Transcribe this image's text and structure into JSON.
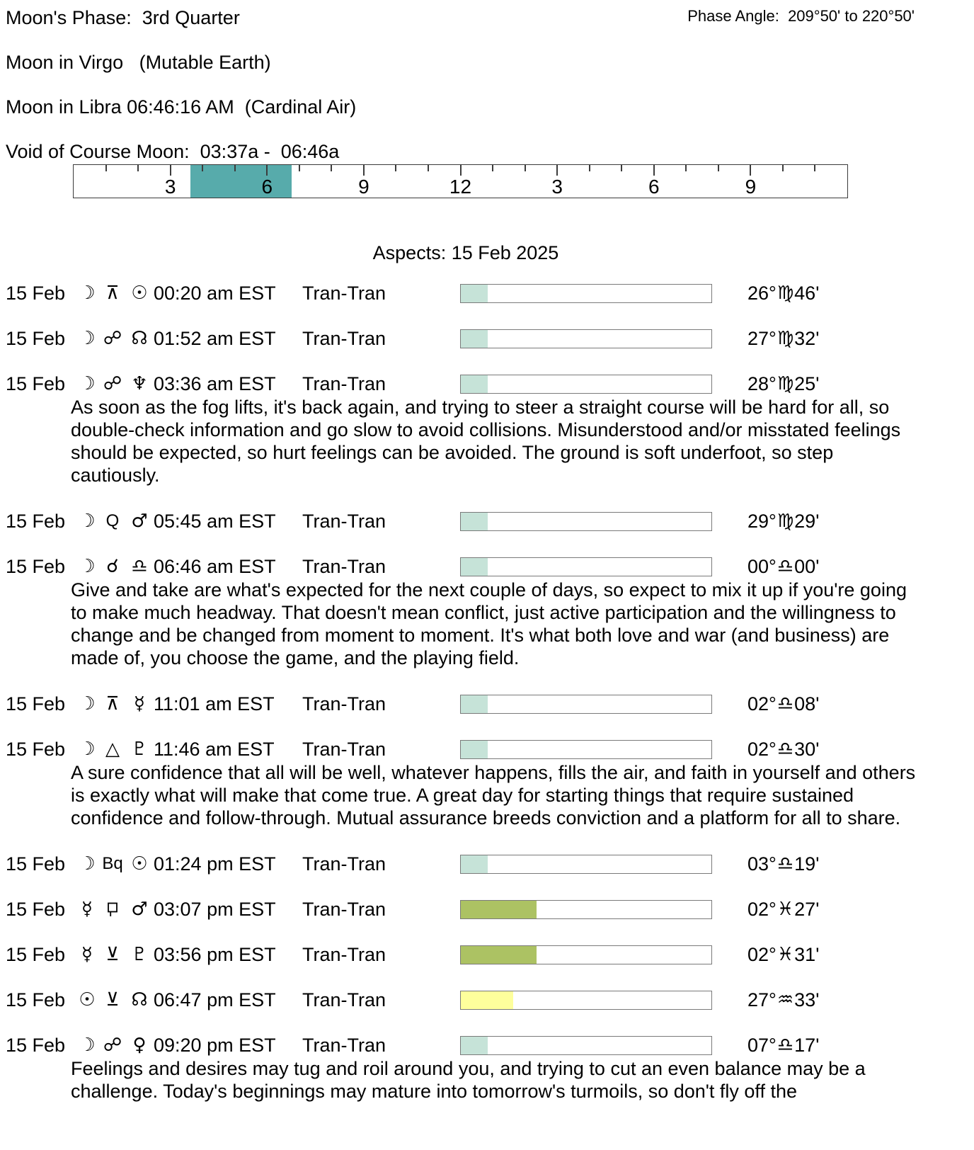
{
  "header": {
    "moon_phase": "Moon's Phase:  3rd Quarter",
    "phase_angle": "Phase Angle:  209°50' to 220°50'",
    "moon_in_sign": "Moon in Virgo   (Mutable Earth)",
    "moon_ingress": "Moon in Libra 06:46:16 AM  (Cardinal Air)",
    "voc": "Void of Course Moon:  03:37a -  06:46a"
  },
  "ruler": {
    "hours_span": 24,
    "labels": [
      {
        "text": "3",
        "hour": 3
      },
      {
        "text": "6",
        "hour": 6
      },
      {
        "text": "9",
        "hour": 9
      },
      {
        "text": "12",
        "hour": 12
      },
      {
        "text": "3",
        "hour": 15
      },
      {
        "text": "6",
        "hour": 18
      },
      {
        "text": "9",
        "hour": 21
      }
    ],
    "highlight": {
      "start_hour": 3.617,
      "end_hour": 6.767,
      "color": "#57abab"
    }
  },
  "aspects": {
    "title": "Aspects: 15 Feb 2025",
    "rows": [
      {
        "date": "15 Feb",
        "p1": "moon",
        "aspect": "quincunx",
        "p2": "sun",
        "time": "00:20 am EST",
        "type": "Tran-Tran",
        "orb_fill_pct": 10.7,
        "orb_fill_color": "#c6e3d8",
        "pos": {
          "deg": "26",
          "sign": "virgo",
          "min": "46"
        },
        "note": ""
      },
      {
        "date": "15 Feb",
        "p1": "moon",
        "aspect": "opposition",
        "p2": "north-node",
        "time": "01:52 am EST",
        "type": "Tran-Tran",
        "orb_fill_pct": 10.7,
        "orb_fill_color": "#c6e3d8",
        "pos": {
          "deg": "27",
          "sign": "virgo",
          "min": "32"
        },
        "note": ""
      },
      {
        "date": "15 Feb",
        "p1": "moon",
        "aspect": "opposition",
        "p2": "neptune",
        "time": "03:36 am EST",
        "type": "Tran-Tran",
        "orb_fill_pct": 10.7,
        "orb_fill_color": "#c6e3d8",
        "pos": {
          "deg": "28",
          "sign": "virgo",
          "min": "25"
        },
        "note": "As soon as the fog lifts, it's back again, and trying to steer a straight course will be hard for all, so double-check information and go slow to avoid collisions. Misunderstood and/or misstated feelings should be expected, so hurt feelings can be avoided. The ground is soft underfoot, so step cautiously."
      },
      {
        "date": "15 Feb",
        "p1": "moon",
        "aspect": "quintile",
        "p2": "mars",
        "time": "05:45 am EST",
        "type": "Tran-Tran",
        "orb_fill_pct": 10.7,
        "orb_fill_color": "#c6e3d8",
        "pos": {
          "deg": "29",
          "sign": "virgo",
          "min": "29"
        },
        "note": ""
      },
      {
        "date": "15 Feb",
        "p1": "moon",
        "aspect": "conjunction",
        "p2": "libra-sign",
        "time": "06:46 am EST",
        "type": "Tran-Tran",
        "orb_fill_pct": 10.7,
        "orb_fill_color": "#c6e3d8",
        "pos": {
          "deg": "00",
          "sign": "libra",
          "min": "00"
        },
        "note": "Give and take are what's expected for the next couple of days, so expect to mix it up if you're going to make much headway. That doesn't mean conflict, just active participation and the willingness to change and be changed from moment to moment. It's what both love and war (and business) are made of, you choose the game, and the playing field."
      },
      {
        "date": "15 Feb",
        "p1": "moon",
        "aspect": "quincunx",
        "p2": "mercury",
        "time": "11:01 am EST",
        "type": "Tran-Tran",
        "orb_fill_pct": 10.7,
        "orb_fill_color": "#c6e3d8",
        "pos": {
          "deg": "02",
          "sign": "libra",
          "min": "08"
        },
        "note": ""
      },
      {
        "date": "15 Feb",
        "p1": "moon",
        "aspect": "trine",
        "p2": "pluto",
        "time": "11:46 am EST",
        "type": "Tran-Tran",
        "orb_fill_pct": 10.7,
        "orb_fill_color": "#c6e3d8",
        "pos": {
          "deg": "02",
          "sign": "libra",
          "min": "30"
        },
        "note": "A sure confidence that all will be well, whatever happens, fills the air, and faith in yourself and others is exactly what will make that come true. A great day for starting things that require sustained confidence and follow-through. Mutual assurance breeds conviction and a platform for all to share."
      },
      {
        "date": "15 Feb",
        "p1": "moon",
        "aspect": "biquintile",
        "p2": "sun",
        "time": "01:24 pm EST",
        "type": "Tran-Tran",
        "orb_fill_pct": 10.7,
        "orb_fill_color": "#c6e3d8",
        "pos": {
          "deg": "03",
          "sign": "libra",
          "min": "19"
        },
        "note": ""
      },
      {
        "date": "15 Feb",
        "p1": "mercury",
        "aspect": "sesquiquadrate",
        "p2": "mars",
        "time": "03:07 pm EST",
        "type": "Tran-Tran",
        "orb_fill_pct": 30.3,
        "orb_fill_color": "#acc263",
        "pos": {
          "deg": "02",
          "sign": "pisces",
          "min": "27"
        },
        "note": ""
      },
      {
        "date": "15 Feb",
        "p1": "mercury",
        "aspect": "semisextile",
        "p2": "pluto",
        "time": "03:56 pm EST",
        "type": "Tran-Tran",
        "orb_fill_pct": 30.3,
        "orb_fill_color": "#acc263",
        "pos": {
          "deg": "02",
          "sign": "pisces",
          "min": "31"
        },
        "note": ""
      },
      {
        "date": "15 Feb",
        "p1": "sun",
        "aspect": "semisextile",
        "p2": "north-node",
        "time": "06:47 pm EST",
        "type": "Tran-Tran",
        "orb_fill_pct": 20.8,
        "orb_fill_color": "#feff9c",
        "pos": {
          "deg": "27",
          "sign": "aquarius",
          "min": "33"
        },
        "note": ""
      },
      {
        "date": "15 Feb",
        "p1": "moon",
        "aspect": "opposition",
        "p2": "venus",
        "time": "09:20 pm EST",
        "type": "Tran-Tran",
        "orb_fill_pct": 10.7,
        "orb_fill_color": "#c6e3d8",
        "pos": {
          "deg": "07",
          "sign": "libra",
          "min": "17"
        },
        "note": "Feelings and desires may tug and roil around you, and trying to cut an even balance may be a challenge. Today's beginnings may mature into tomorrow's turmoils, so don't fly off the"
      }
    ]
  },
  "glyphs": {
    "moon": "☽",
    "sun": "☉",
    "mercury": "☿",
    "venus": "♀",
    "mars": "♂",
    "neptune": "♆",
    "pluto": "♇",
    "north-node": "☊",
    "libra-sign": "♎",
    "conjunction": "☌",
    "opposition": "☍",
    "trine": "△",
    "quincunx": "⊼",
    "semisextile": "⊻",
    "quintile": "Q",
    "biquintile": "Bq",
    "sesquiquadrate": "::svg",
    "virgo": "♍",
    "libra": "♎",
    "pisces": "♓",
    "aquarius": "♒"
  },
  "colors": {
    "voc_highlight": "#57abab",
    "orb_mint": "#c6e3d8",
    "orb_olive": "#acc263",
    "orb_yellow": "#feff9c"
  }
}
